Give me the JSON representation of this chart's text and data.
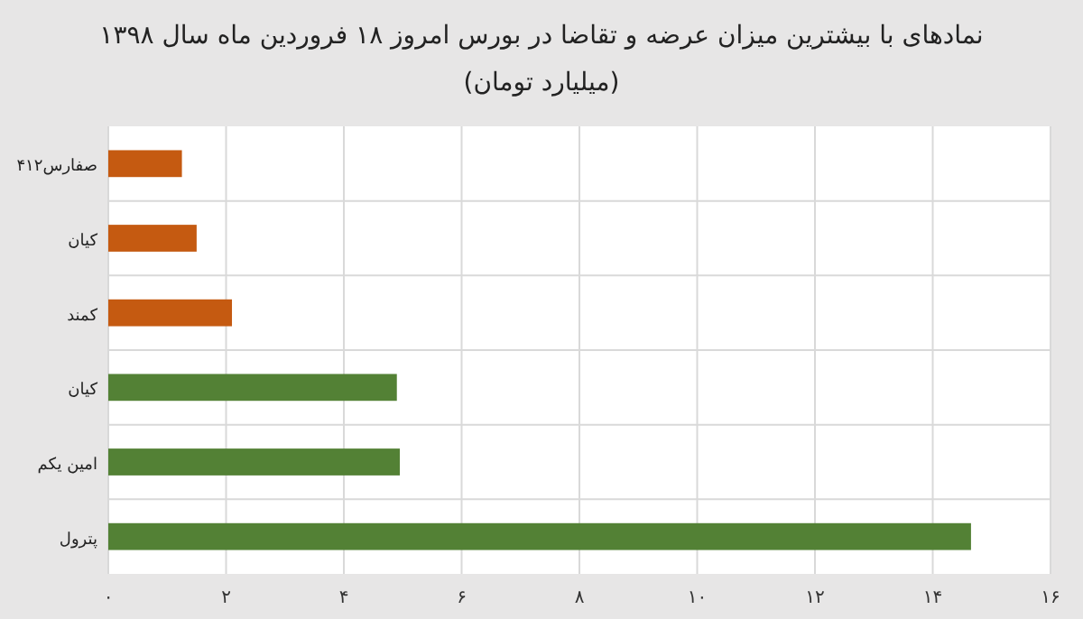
{
  "chart_data": {
    "type": "bar",
    "orientation": "horizontal",
    "title": "نمادهای با بیشترین میزان عرضه و تقاضا در بورس امروز ۱۸ فروردین ماه سال ۱۳۹۸",
    "subtitle": "(میلیارد تومان)",
    "categories": [
      "صفارس۴۱۲",
      "کیان",
      "کمند",
      "کیان",
      "امین یکم",
      "پترول"
    ],
    "values": [
      1.25,
      1.5,
      2.1,
      4.9,
      4.95,
      14.65
    ],
    "colors": [
      "#c55a11",
      "#c55a11",
      "#c55a11",
      "#538135",
      "#538135",
      "#538135"
    ],
    "xlim": [
      0,
      16
    ],
    "xticks": [
      {
        "value": 0,
        "label": "۰"
      },
      {
        "value": 2,
        "label": "۲"
      },
      {
        "value": 4,
        "label": "۴"
      },
      {
        "value": 6,
        "label": "۶"
      },
      {
        "value": 8,
        "label": "۸"
      },
      {
        "value": 10,
        "label": "۱۰"
      },
      {
        "value": 12,
        "label": "۱۲"
      },
      {
        "value": 14,
        "label": "۱۴"
      },
      {
        "value": 16,
        "label": "۱۶"
      }
    ],
    "grid": true
  }
}
